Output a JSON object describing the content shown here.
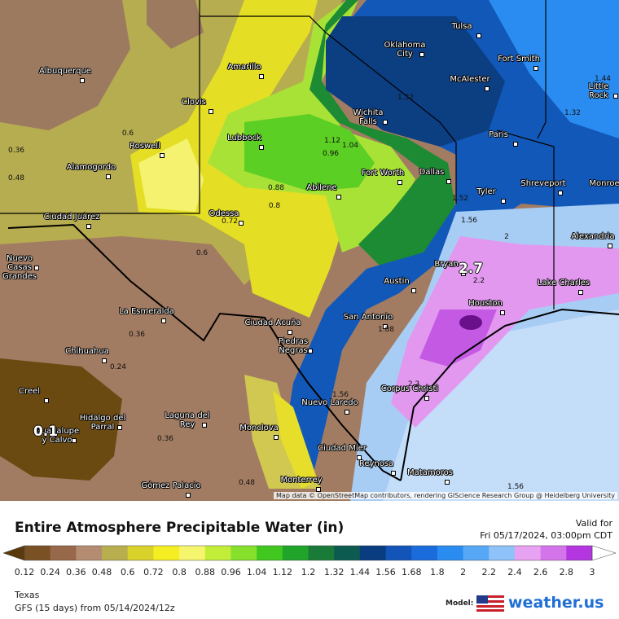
{
  "map": {
    "cities": [
      "Albuquerque",
      "Amarillo",
      "Clovis",
      "Roswell",
      "Lubbock",
      "Alamogordo",
      "Odessa",
      "Abilene",
      "Fort Worth",
      "Dallas",
      "Wichita Falls",
      "Oklahoma City",
      "Tulsa",
      "Fort Smith",
      "McAlester",
      "Little Rock",
      "Paris",
      "Tyler",
      "Shreveport",
      "Monroe",
      "Alexandria",
      "Lake Charles",
      "Houston",
      "Bryan",
      "Austin",
      "San Antonio",
      "Ciudad Juárez",
      "Nuevo Casas Grandes",
      "La Esmeralda",
      "Ciudad Acuña",
      "Piedras Negras",
      "Chihuahua",
      "Creel",
      "Hidalgo del Parral",
      "Guadalupe y Calvo",
      "Laguna del Rey",
      "Monclova",
      "Nuevo Laredo",
      "Corpus Christi",
      "Ciudad Mier",
      "Reynosa",
      "Matamoros",
      "Monterrey",
      "Gómez Palacio"
    ],
    "contour_labels": [
      0.6,
      0.36,
      0.48,
      0.88,
      0.8,
      0.72,
      0.6,
      1.12,
      1.04,
      0.96,
      1.32,
      1.32,
      1.44,
      1.52,
      1.56,
      2,
      2.2,
      0.36,
      0.24,
      0.36,
      1.88,
      1.56,
      2.2,
      1.56,
      0.48
    ],
    "highlight_labels": [
      2.7,
      0.1
    ],
    "attribution": "Map data © OpenStreetMap contributors, rendering GIScience Research Group @ Heidelberg University"
  },
  "legend": {
    "title": "Entire Atmosphere Precipitable Water (in)",
    "valid_label": "Valid for",
    "valid_time": "Fri 05/17/2024, 03:00pm CDT",
    "labels": [
      0.12,
      0.24,
      0.36,
      0.48,
      0.6,
      0.72,
      0.8,
      0.88,
      0.96,
      1.04,
      1.12,
      1.2,
      1.32,
      1.44,
      1.56,
      1.68,
      1.8,
      2,
      2.2,
      2.4,
      2.6,
      2.8,
      3
    ],
    "colors": [
      "#5a3a0c",
      "#7a5124",
      "#98684a",
      "#b48c72",
      "#b8ae4e",
      "#d8d22a",
      "#f4ee22",
      "#f6f66e",
      "#c2ee3a",
      "#86e02c",
      "#40c820",
      "#20a42a",
      "#1a7a38",
      "#0c5a50",
      "#0a3c80",
      "#1254b8",
      "#1a6cdc",
      "#2a8cf0",
      "#56a8f6",
      "#8ec2f8",
      "#e8a2f2",
      "#d474ea",
      "#b436e0",
      "#6c1088",
      "#a0a0a0",
      "#ffffff"
    ]
  },
  "footer": {
    "region": "Texas",
    "model_run": "GFS (15 days) from 05/14/2024/12z",
    "model_label": "Model:",
    "brand": "weather.us"
  }
}
